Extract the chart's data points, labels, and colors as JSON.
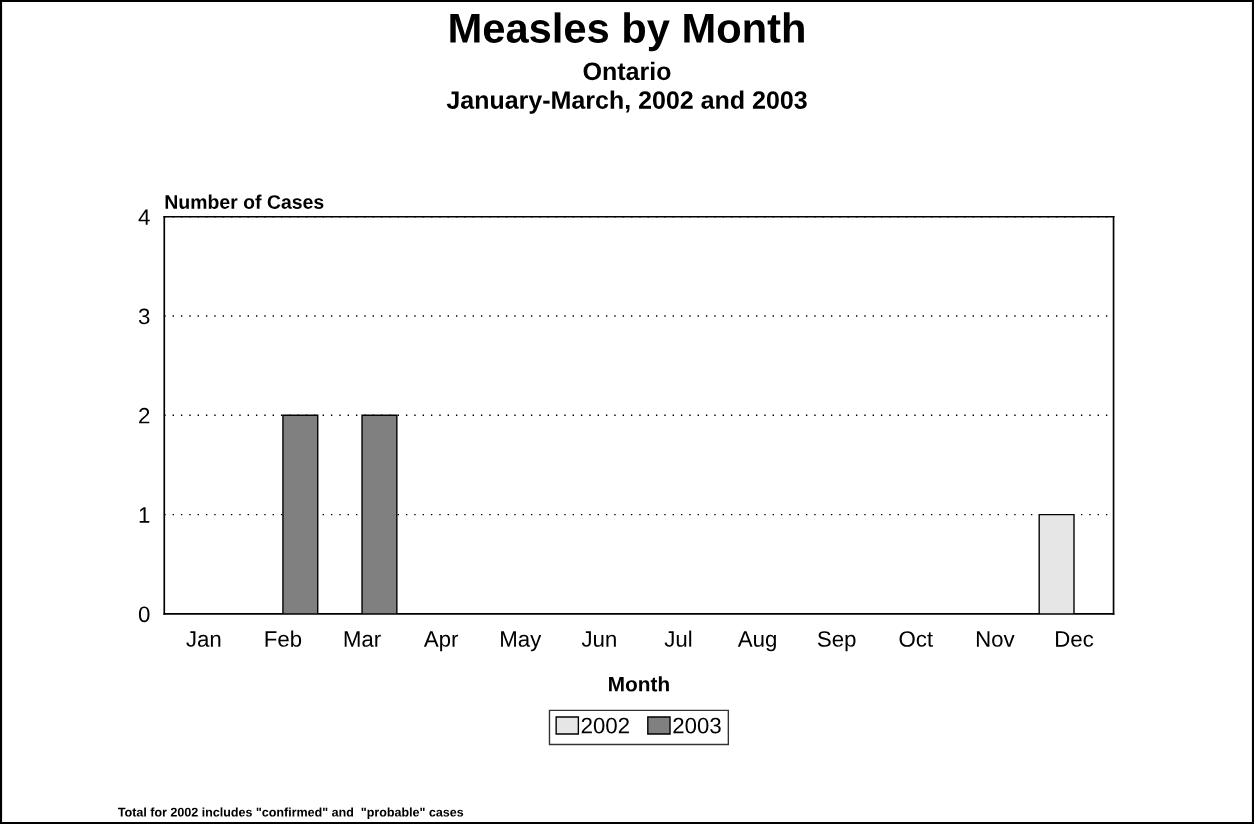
{
  "chart_data": {
    "type": "bar",
    "title": "Measles by Month",
    "subtitle": "Ontario\nJanuary-March, 2002 and 2003",
    "xlabel": "Month",
    "ylabel": "Number of Cases",
    "categories": [
      "Jan",
      "Feb",
      "Mar",
      "Apr",
      "May",
      "Jun",
      "Jul",
      "Aug",
      "Sep",
      "Oct",
      "Nov",
      "Dec"
    ],
    "series": [
      {
        "name": "2002",
        "color": "#e6e6e6",
        "values": [
          0,
          0,
          0,
          0,
          0,
          0,
          0,
          0,
          0,
          0,
          0,
          1
        ]
      },
      {
        "name": "2003",
        "color": "#808080",
        "values": [
          0,
          2,
          2,
          0,
          0,
          0,
          0,
          0,
          0,
          0,
          0,
          0
        ]
      }
    ],
    "ylim": [
      0,
      4
    ],
    "yticks": [
      0,
      1,
      2,
      3,
      4
    ],
    "grid": "y",
    "legend": "bottom",
    "annotations": [
      "Total for 2002 includes \"confirmed\" and  \"probable\" cases"
    ]
  }
}
